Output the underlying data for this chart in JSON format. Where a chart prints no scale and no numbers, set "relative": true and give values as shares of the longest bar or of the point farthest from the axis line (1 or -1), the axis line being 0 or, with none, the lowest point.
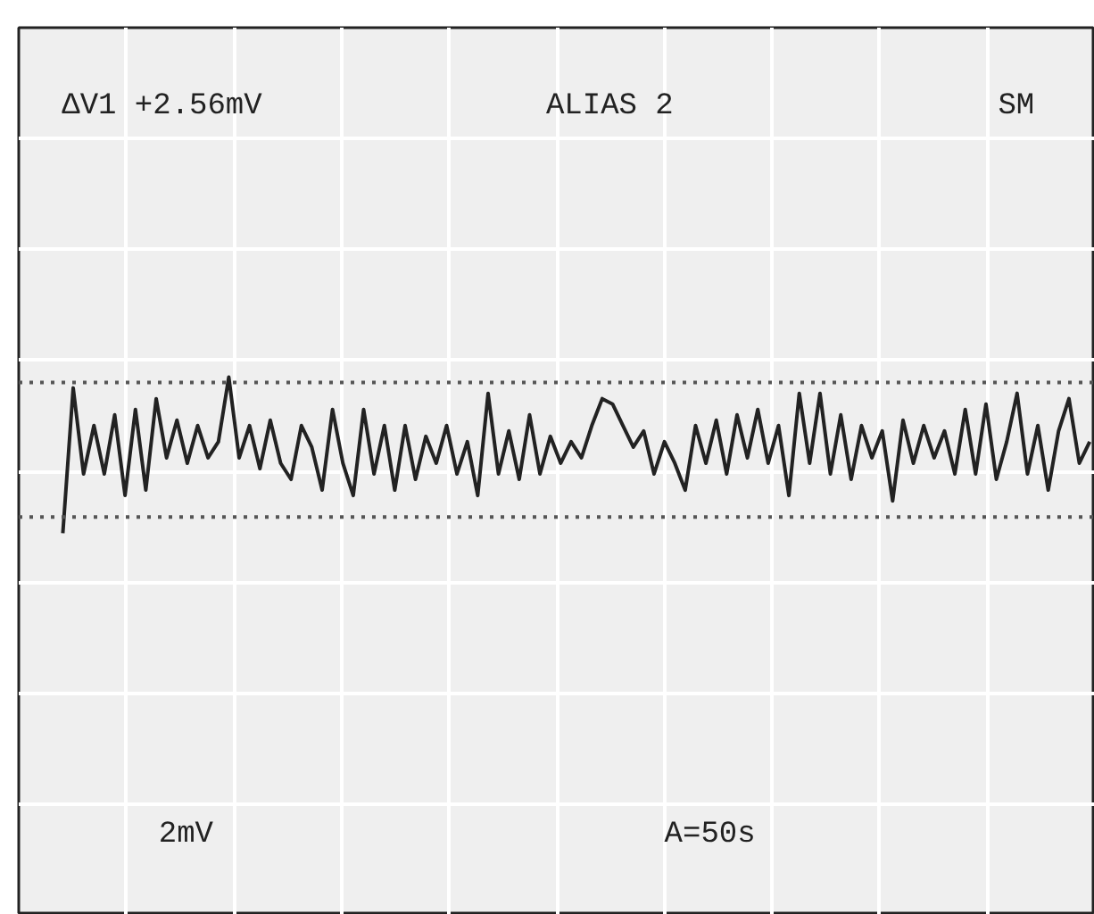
{
  "chart_data": {
    "type": "line",
    "relative": true,
    "grid": true,
    "line_style": "solid",
    "marker": "none",
    "annotations": [
      "ΔV1 +2.56mV",
      "ALIAS 2",
      "SM",
      "2mV",
      "A=50s"
    ],
    "ref_lines": [
      {
        "axis": "y",
        "value": 0.99,
        "line_style": "dotted",
        "color": "#555555"
      },
      {
        "axis": "y",
        "value": 0.74,
        "line_style": "dotted",
        "color": "#555555"
      }
    ],
    "categories": [
      null,
      null,
      null,
      null,
      null,
      null,
      null,
      null,
      null,
      null,
      null,
      null,
      null,
      null,
      null,
      null,
      null,
      null,
      null,
      null,
      null,
      null,
      null,
      null,
      null,
      null,
      null,
      null,
      null,
      null,
      null,
      null,
      null,
      null,
      null,
      null,
      null,
      null,
      null,
      null,
      null,
      null,
      null,
      null,
      null,
      null,
      null,
      null,
      null,
      null,
      null,
      null,
      null,
      null,
      null,
      null,
      null,
      null,
      null,
      null,
      null,
      null,
      null,
      null,
      null,
      null,
      null,
      null,
      null,
      null,
      null,
      null,
      null,
      null,
      null,
      null,
      null,
      null,
      null,
      null,
      null,
      null,
      null,
      null,
      null,
      null,
      null,
      null,
      null,
      null,
      null,
      null,
      null,
      null,
      null,
      null,
      null,
      null,
      null,
      null
    ],
    "series": [
      {
        "color": "#222222",
        "values": [
          0.71,
          0.98,
          0.82,
          0.91,
          0.82,
          0.93,
          0.78,
          0.94,
          0.79,
          0.96,
          0.85,
          0.92,
          0.84,
          0.91,
          0.85,
          0.88,
          1,
          0.85,
          0.91,
          0.83,
          0.92,
          0.84,
          0.81,
          0.91,
          0.87,
          0.79,
          0.94,
          0.84,
          0.78,
          0.94,
          0.82,
          0.91,
          0.79,
          0.91,
          0.81,
          0.89,
          0.84,
          0.91,
          0.82,
          0.88,
          0.78,
          0.97,
          0.82,
          0.9,
          0.81,
          0.93,
          0.82,
          0.89,
          0.84,
          0.88,
          0.85,
          0.91,
          0.96,
          0.95,
          0.91,
          0.87,
          0.9,
          0.82,
          0.88,
          0.84,
          0.79,
          0.91,
          0.84,
          0.92,
          0.82,
          0.93,
          0.85,
          0.94,
          0.84,
          0.91,
          0.78,
          0.97,
          0.84,
          0.97,
          0.82,
          0.93,
          0.81,
          0.91,
          0.85,
          0.9,
          0.77,
          0.92,
          0.84,
          0.91,
          0.85,
          0.9,
          0.82,
          0.94,
          0.82,
          0.95,
          0.81,
          0.88,
          0.97,
          0.82,
          0.91,
          0.79,
          0.9,
          0.96,
          0.84,
          0.88
        ]
      }
    ]
  }
}
